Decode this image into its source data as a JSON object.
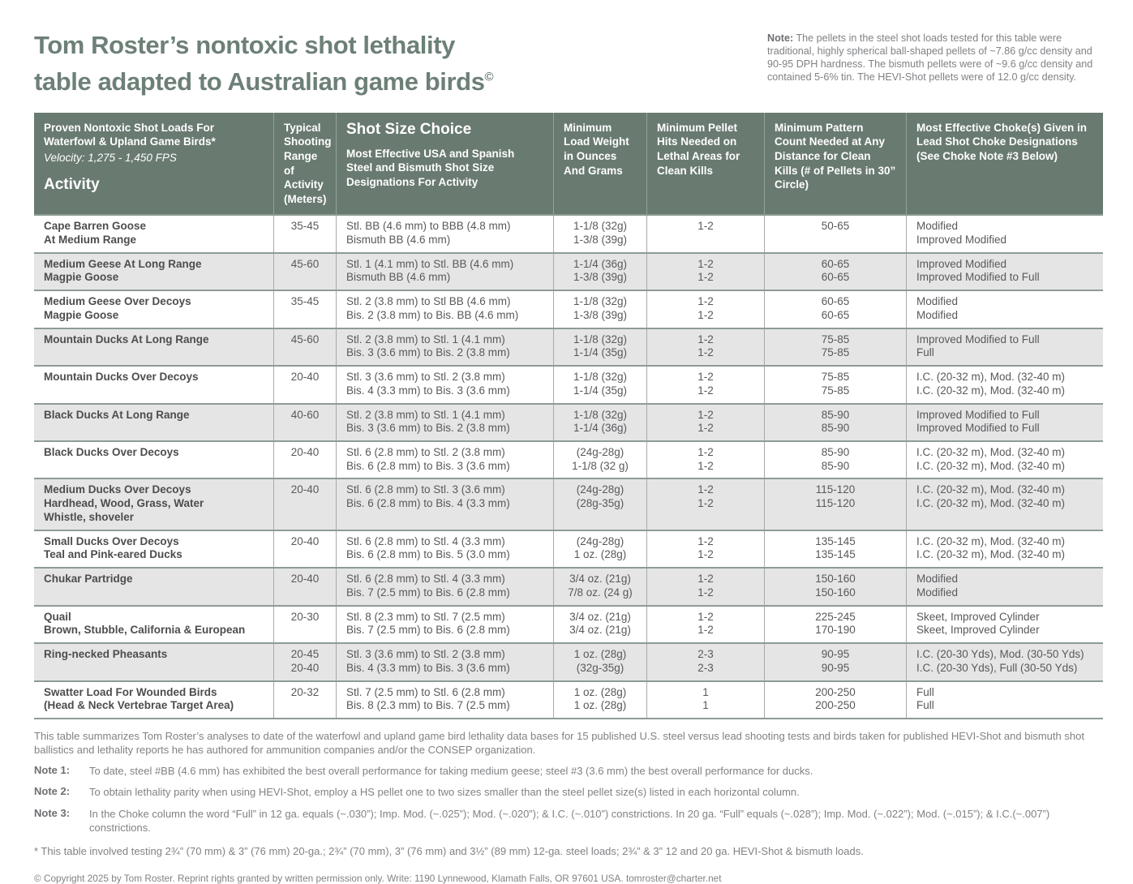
{
  "colors": {
    "title": "#6d8077",
    "table_header_bg": "#697a71",
    "row_shade": "#e5e5e6",
    "row_border": "#8d9c94"
  },
  "header": {
    "title_line1": "Tom Roster’s nontoxic shot lethality",
    "title_line2": "table adapted to Australian game birds",
    "title_superscript": "©",
    "note_label": "Note:",
    "note_text": "The pellets in the steel shot loads tested for this table were traditional, highly spherical ball-shaped pellets of ~7.86 g/cc density and 90-95 DPH hardness. The bismuth pellets were of ~9.6 g/cc density and contained 5-6% tin. The HEVI-Shot pellets were of 12.0 g/cc density."
  },
  "table": {
    "header": {
      "col1_title": "Proven Nontoxic Shot Loads For Waterfowl & Upland Game Birds*",
      "col1_velocity": "Velocity: 1,275 - 1,450 FPS",
      "col1_label": "Activity",
      "col2": "Typical Shooting Range of Activity (Meters)",
      "col3_title": "Shot Size Choice",
      "col3_sub": "Most Effective USA and Spanish Steel and Bismuth Shot Size Designations For Activity",
      "col4": "Minimum Load Weight in Ounces And Grams",
      "col5": "Minimum Pellet Hits Needed on Lethal Areas for Clean Kills",
      "col6": "Minimum Pattern Count Needed at Any Distance for Clean Kills (# of Pellets in 30” Circle)",
      "col7": "Most Effective Choke(s) Given in Lead Shot Choke Designations (See Choke Note #3 Below)"
    },
    "rows": [
      {
        "activity": [
          "Cape Barren Goose",
          "At Medium Range"
        ],
        "range": [
          "35-45"
        ],
        "shot_size": [
          "Stl. BB (4.6 mm) to BBB (4.8 mm)",
          "Bismuth BB (4.6 mm)"
        ],
        "load_weight": [
          "1-1/8 (32g)",
          "1-3/8 (39g)"
        ],
        "pellet_hits": [
          "1-2"
        ],
        "pattern_count": [
          "50-65"
        ],
        "choke": [
          "Modified",
          "Improved Modified"
        ],
        "shaded": false
      },
      {
        "activity": [
          "Medium Geese At Long Range",
          "Magpie Goose"
        ],
        "range": [
          "45-60"
        ],
        "shot_size": [
          "Stl. 1 (4.1 mm) to Stl. BB (4.6 mm)",
          "Bismuth BB (4.6 mm)"
        ],
        "load_weight": [
          "1-1/4 (36g)",
          "1-3/8 (39g)"
        ],
        "pellet_hits": [
          "1-2",
          "1-2"
        ],
        "pattern_count": [
          "60-65",
          "60-65"
        ],
        "choke": [
          "Improved Modified",
          "Improved Modified to Full"
        ],
        "shaded": true
      },
      {
        "activity": [
          "Medium Geese Over Decoys",
          "Magpie Goose"
        ],
        "range": [
          "35-45"
        ],
        "shot_size": [
          "Stl. 2 (3.8 mm) to Stl BB (4.6 mm)",
          "Bis. 2 (3.8 mm) to Bis. BB (4.6 mm)"
        ],
        "load_weight": [
          "1-1/8 (32g)",
          "1-3/8 (39g)"
        ],
        "pellet_hits": [
          "1-2",
          "1-2"
        ],
        "pattern_count": [
          "60-65",
          "60-65"
        ],
        "choke": [
          "Modified",
          "Modified"
        ],
        "shaded": false
      },
      {
        "activity": [
          "Mountain Ducks At Long Range"
        ],
        "range": [
          "45-60"
        ],
        "shot_size": [
          "Stl. 2 (3.8 mm) to Stl. 1 (4.1 mm)",
          "Bis. 3 (3.6 mm) to Bis. 2 (3.8 mm)"
        ],
        "load_weight": [
          "1-1/8 (32g)",
          "1-1/4 (35g)"
        ],
        "pellet_hits": [
          "1-2",
          "1-2"
        ],
        "pattern_count": [
          "75-85",
          "75-85"
        ],
        "choke": [
          "Improved Modified to Full",
          "Full"
        ],
        "shaded": true
      },
      {
        "activity": [
          "Mountain Ducks Over Decoys"
        ],
        "range": [
          "20-40"
        ],
        "shot_size": [
          "Stl. 3 (3.6 mm) to Stl. 2 (3.8 mm)",
          "Bis. 4 (3.3 mm) to Bis. 3 (3.6 mm)"
        ],
        "load_weight": [
          "1-1/8 (32g)",
          "1-1/4 (35g)"
        ],
        "pellet_hits": [
          "1-2",
          "1-2"
        ],
        "pattern_count": [
          "75-85",
          "75-85"
        ],
        "choke": [
          "I.C. (20-32 m), Mod. (32-40 m)",
          "I.C. (20-32 m), Mod. (32-40 m)"
        ],
        "shaded": false
      },
      {
        "activity": [
          "Black Ducks At Long Range"
        ],
        "range": [
          "40-60"
        ],
        "shot_size": [
          "Stl. 2 (3.8 mm) to Stl. 1 (4.1 mm)",
          "Bis. 3 (3.6 mm) to Bis. 2 (3.8 mm)"
        ],
        "load_weight": [
          "1-1/8 (32g)",
          "1-1/4 (36g)"
        ],
        "pellet_hits": [
          "1-2",
          "1-2"
        ],
        "pattern_count": [
          "85-90",
          "85-90"
        ],
        "choke": [
          "Improved Modified to Full",
          "Improved Modified to Full"
        ],
        "shaded": true
      },
      {
        "activity": [
          "Black Ducks Over Decoys"
        ],
        "range": [
          "20-40"
        ],
        "shot_size": [
          "Stl. 6 (2.8 mm) to Stl. 2 (3.8 mm)",
          "Bis. 6 (2.8 mm) to Bis. 3 (3.6 mm)"
        ],
        "load_weight": [
          "(24g-28g)",
          "1-1/8 (32 g)"
        ],
        "pellet_hits": [
          "1-2",
          "1-2"
        ],
        "pattern_count": [
          "85-90",
          "85-90"
        ],
        "choke": [
          "I.C. (20-32 m), Mod. (32-40 m)",
          "I.C. (20-32 m), Mod. (32-40 m)"
        ],
        "shaded": false
      },
      {
        "activity": [
          "Medium Ducks Over Decoys",
          "Hardhead, Wood, Grass, Water",
          "Whistle, shoveler"
        ],
        "range": [
          "20-40"
        ],
        "shot_size": [
          "Stl. 6 (2.8 mm) to Stl. 3 (3.6 mm)",
          "Bis. 6 (2.8 mm) to Bis. 4 (3.3 mm)"
        ],
        "load_weight": [
          "(24g-28g)",
          "(28g-35g)"
        ],
        "pellet_hits": [
          "1-2",
          "1-2"
        ],
        "pattern_count": [
          "115-120",
          "115-120"
        ],
        "choke": [
          "I.C. (20-32 m), Mod. (32-40 m)",
          "I.C. (20-32 m), Mod. (32-40 m)"
        ],
        "shaded": true
      },
      {
        "activity": [
          "Small Ducks Over Decoys",
          "Teal and Pink-eared Ducks"
        ],
        "range": [
          "20-40"
        ],
        "shot_size": [
          "Stl. 6 (2.8 mm) to Stl. 4 (3.3 mm)",
          "Bis. 6 (2.8 mm) to Bis. 5 (3.0 mm)"
        ],
        "load_weight": [
          "(24g-28g)",
          "1 oz. (28g)"
        ],
        "pellet_hits": [
          "1-2",
          "1-2"
        ],
        "pattern_count": [
          "135-145",
          "135-145"
        ],
        "choke": [
          "I.C. (20-32 m), Mod. (32-40 m)",
          "I.C. (20-32 m), Mod. (32-40 m)"
        ],
        "shaded": false
      },
      {
        "activity": [
          "Chukar Partridge"
        ],
        "range": [
          "20-40"
        ],
        "shot_size": [
          "Stl. 6 (2.8 mm) to Stl. 4 (3.3 mm)",
          "Bis. 7 (2.5 mm) to Bis. 6 (2.8 mm)"
        ],
        "load_weight": [
          "3/4 oz. (21g)",
          "7/8 oz. (24 g)"
        ],
        "pellet_hits": [
          "1-2",
          "1-2"
        ],
        "pattern_count": [
          "150-160",
          "150-160"
        ],
        "choke": [
          "Modified",
          "Modified"
        ],
        "shaded": true
      },
      {
        "activity": [
          "Quail",
          "Brown, Stubble, California & European"
        ],
        "range": [
          "20-30"
        ],
        "shot_size": [
          "Stl. 8 (2.3 mm) to Stl. 7 (2.5 mm)",
          "Bis. 7 (2.5 mm) to Bis. 6 (2.8 mm)"
        ],
        "load_weight": [
          "3/4 oz. (21g)",
          "3/4 oz. (21g)"
        ],
        "pellet_hits": [
          "1-2",
          "1-2"
        ],
        "pattern_count": [
          "225-245",
          "170-190"
        ],
        "choke": [
          "Skeet, Improved Cylinder",
          "Skeet, Improved Cylinder"
        ],
        "shaded": false
      },
      {
        "activity": [
          "Ring-necked Pheasants"
        ],
        "range": [
          "20-45",
          "20-40"
        ],
        "shot_size": [
          "Stl. 3 (3.6 mm) to Stl. 2 (3.8 mm)",
          "Bis. 4 (3.3 mm) to Bis. 3 (3.6 mm)"
        ],
        "load_weight": [
          "1 oz. (28g)",
          "(32g-35g)"
        ],
        "pellet_hits": [
          "2-3",
          "2-3"
        ],
        "pattern_count": [
          "90-95",
          "90-95"
        ],
        "choke": [
          "I.C. (20-30 Yds), Mod. (30-50 Yds)",
          "I.C. (20-30 Yds), Full (30-50 Yds)"
        ],
        "shaded": true
      },
      {
        "activity": [
          "Swatter Load For Wounded Birds",
          "(Head & Neck Vertebrae Target Area)"
        ],
        "range": [
          "20-32"
        ],
        "shot_size": [
          "Stl. 7 (2.5 mm) to Stl. 6 (2.8 mm)",
          "Bis. 8 (2.3 mm) to Bis. 7 (2.5 mm)"
        ],
        "load_weight": [
          "1 oz. (28g)",
          "1 oz. (28g)"
        ],
        "pellet_hits": [
          "1",
          "1"
        ],
        "pattern_count": [
          "200-250",
          "200-250"
        ],
        "choke": [
          "Full",
          "Full"
        ],
        "shaded": false
      }
    ]
  },
  "footer": {
    "summary": "This table summarizes Tom Roster’s analyses to date of the waterfowl and upland game bird lethality data bases for 15 published U.S. steel versus lead shooting tests and birds taken for published HEVI-Shot and bismuth shot ballistics and lethality reports he has authored for ammunition companies and/or the CONSEP organization.",
    "notes": [
      {
        "label": "Note 1:",
        "text": "To date, steel #BB (4.6 mm) has exhibited the best overall performance for taking medium geese; steel #3 (3.6 mm) the best overall performance for ducks."
      },
      {
        "label": "Note 2:",
        "text": "To obtain lethality parity when using HEVI-Shot, employ a HS pellet one to two sizes smaller than the steel pellet size(s) listed in each horizontal column."
      },
      {
        "label": "Note 3:",
        "text": "In the Choke column the word “Full” in 12 ga. equals (~.030”); Imp. Mod. (~.025”); Mod. (~.020”); & I.C. (~.010”) constrictions. In 20 ga. “Full” equals (~.028”); Imp. Mod. (~.022”); Mod. (~.015”); & I.C.(~.007”) constrictions."
      }
    ],
    "asterisk_note": "* This table involved testing 2¾” (70 mm) & 3” (76 mm) 20-ga.; 2¾” (70 mm), 3” (76 mm) and 3½” (89 mm) 12-ga. steel loads; 2¾” & 3” 12 and 20 ga. HEVI-Shot & bismuth loads.",
    "copyright": "© Copyright 2025 by Tom Roster. Reprint rights granted by written permission only. Write: 1190 Lynnewood, Klamath Falls, OR 97601 USA.  tomroster@charter.net"
  }
}
